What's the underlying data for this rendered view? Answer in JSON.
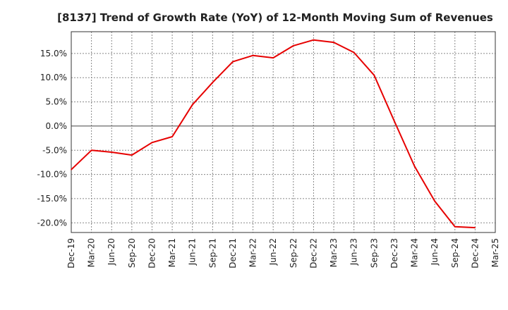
{
  "chart_data": {
    "type": "line",
    "title": "[8137]  Trend of Growth Rate (YoY) of 12-Month Moving Sum of Revenues",
    "xlabel": "",
    "ylabel": "",
    "x_tick_labels": [
      "Dec-19",
      "Mar-20",
      "Jun-20",
      "Sep-20",
      "Dec-20",
      "Mar-21",
      "Jun-21",
      "Sep-21",
      "Dec-21",
      "Mar-22",
      "Jun-22",
      "Sep-22",
      "Dec-22",
      "Mar-23",
      "Jun-23",
      "Sep-23",
      "Dec-23",
      "Mar-24",
      "Jun-24",
      "Sep-24",
      "Dec-24",
      "Mar-25"
    ],
    "y_tick_labels": [
      "15.0%",
      "10.0%",
      "5.0%",
      "0.0%",
      "-5.0%",
      "-10.0%",
      "-15.0%",
      "-20.0%"
    ],
    "y_tick_values": [
      15,
      10,
      5,
      0,
      -5,
      -10,
      -15,
      -20
    ],
    "ylim": [
      -22,
      19.5
    ],
    "grid": true,
    "legend": "none",
    "series": [
      {
        "color": "#e60000",
        "x": [
          "Dec-19",
          "Mar-20",
          "Jun-20",
          "Sep-20",
          "Dec-20",
          "Mar-21",
          "Jun-21",
          "Sep-21",
          "Dec-21",
          "Mar-22",
          "Jun-22",
          "Sep-22",
          "Dec-22",
          "Mar-23",
          "Jun-23",
          "Sep-23",
          "Dec-23",
          "Mar-24",
          "Jun-24",
          "Sep-24",
          "Dec-24"
        ],
        "values": [
          -9.0,
          -5.0,
          -5.4,
          -6.0,
          -3.4,
          -2.2,
          4.4,
          9.0,
          13.3,
          14.6,
          14.1,
          16.6,
          17.8,
          17.3,
          15.2,
          10.5,
          1.0,
          -8.3,
          -15.5,
          -20.8,
          -21.0
        ]
      }
    ]
  }
}
